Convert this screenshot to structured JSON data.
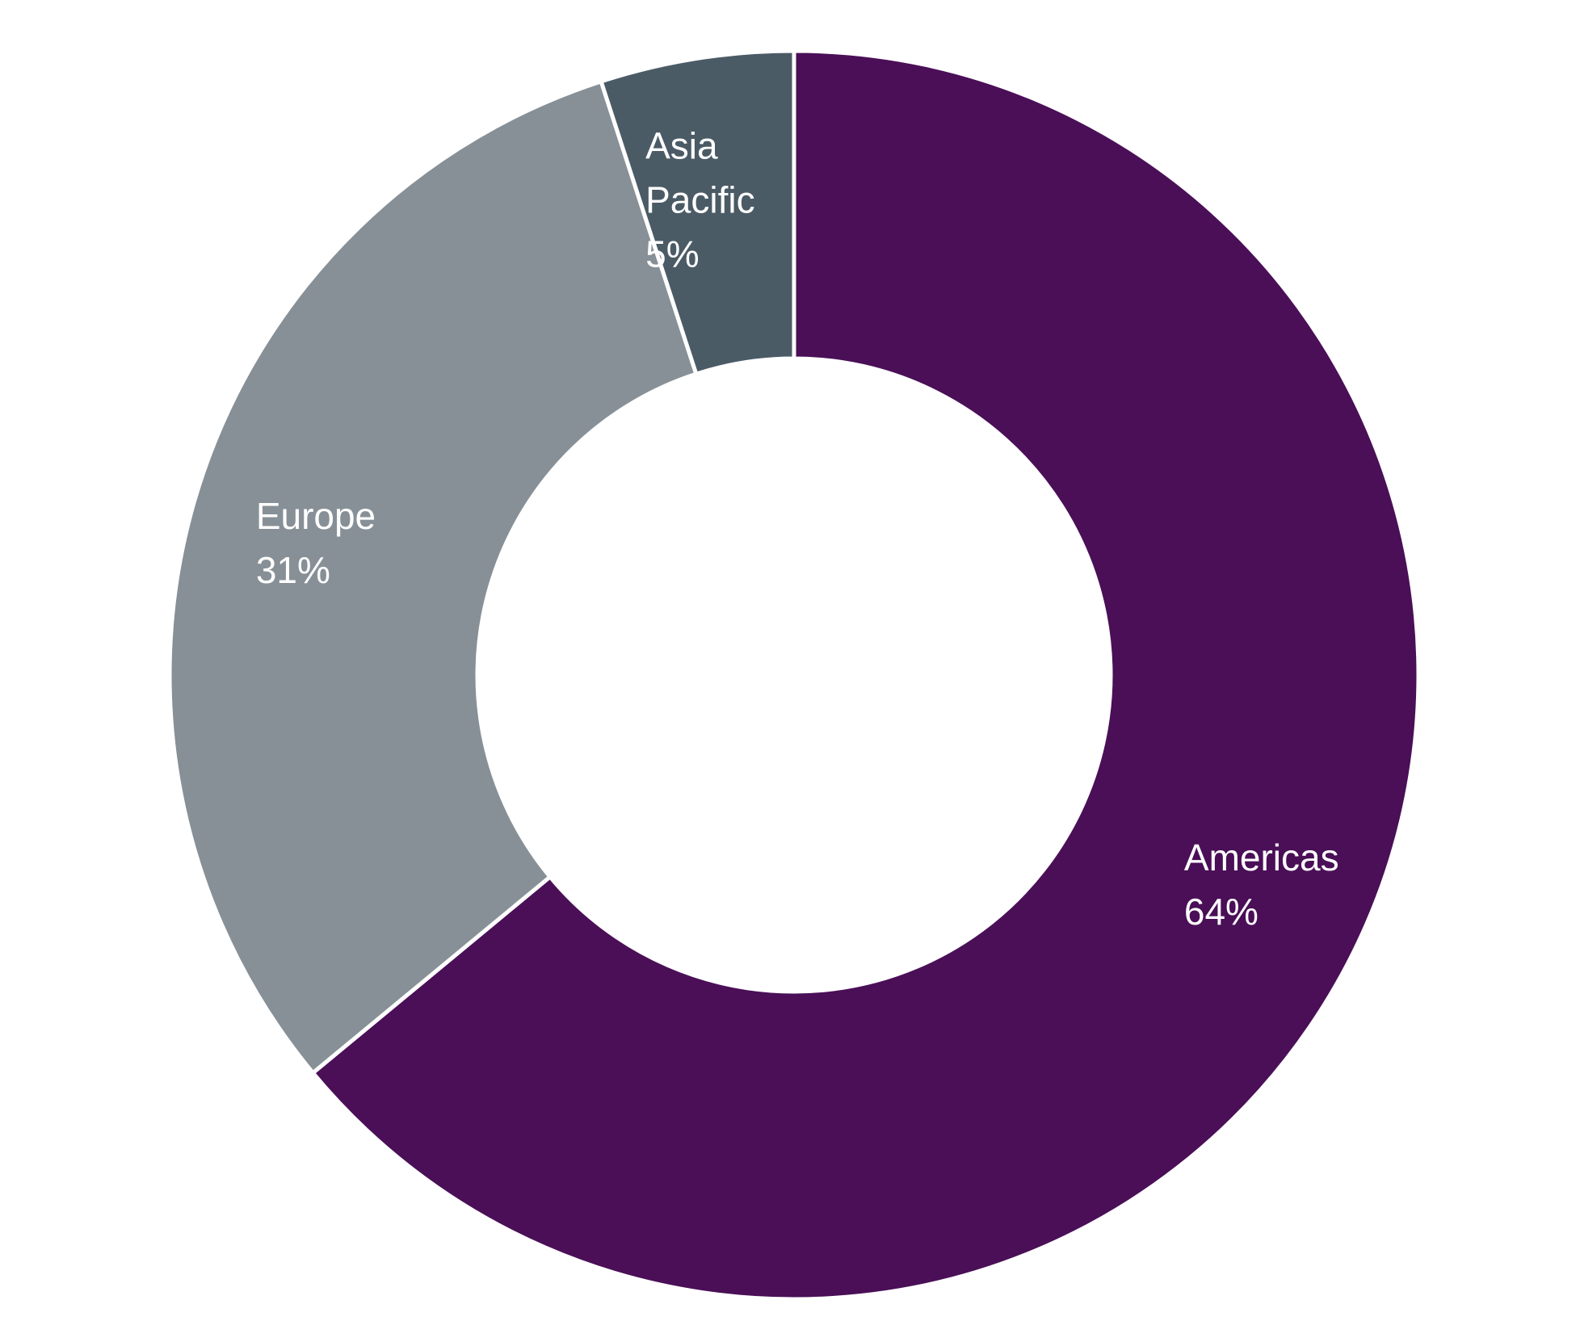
{
  "chart_data": {
    "type": "pie",
    "variant": "donut",
    "start_angle_deg": 0,
    "direction": "clockwise",
    "legend": "none",
    "slices": [
      {
        "label": "Americas",
        "value": 64,
        "display": "64%",
        "color": "#4A0F57"
      },
      {
        "label": "Europe",
        "value": 31,
        "display": "31%",
        "color": "#879097"
      },
      {
        "label": "Asia Pacific",
        "label_lines": [
          "Asia",
          "Pacific"
        ],
        "value": 5,
        "display": "5%",
        "color": "#4B5B66"
      }
    ]
  }
}
